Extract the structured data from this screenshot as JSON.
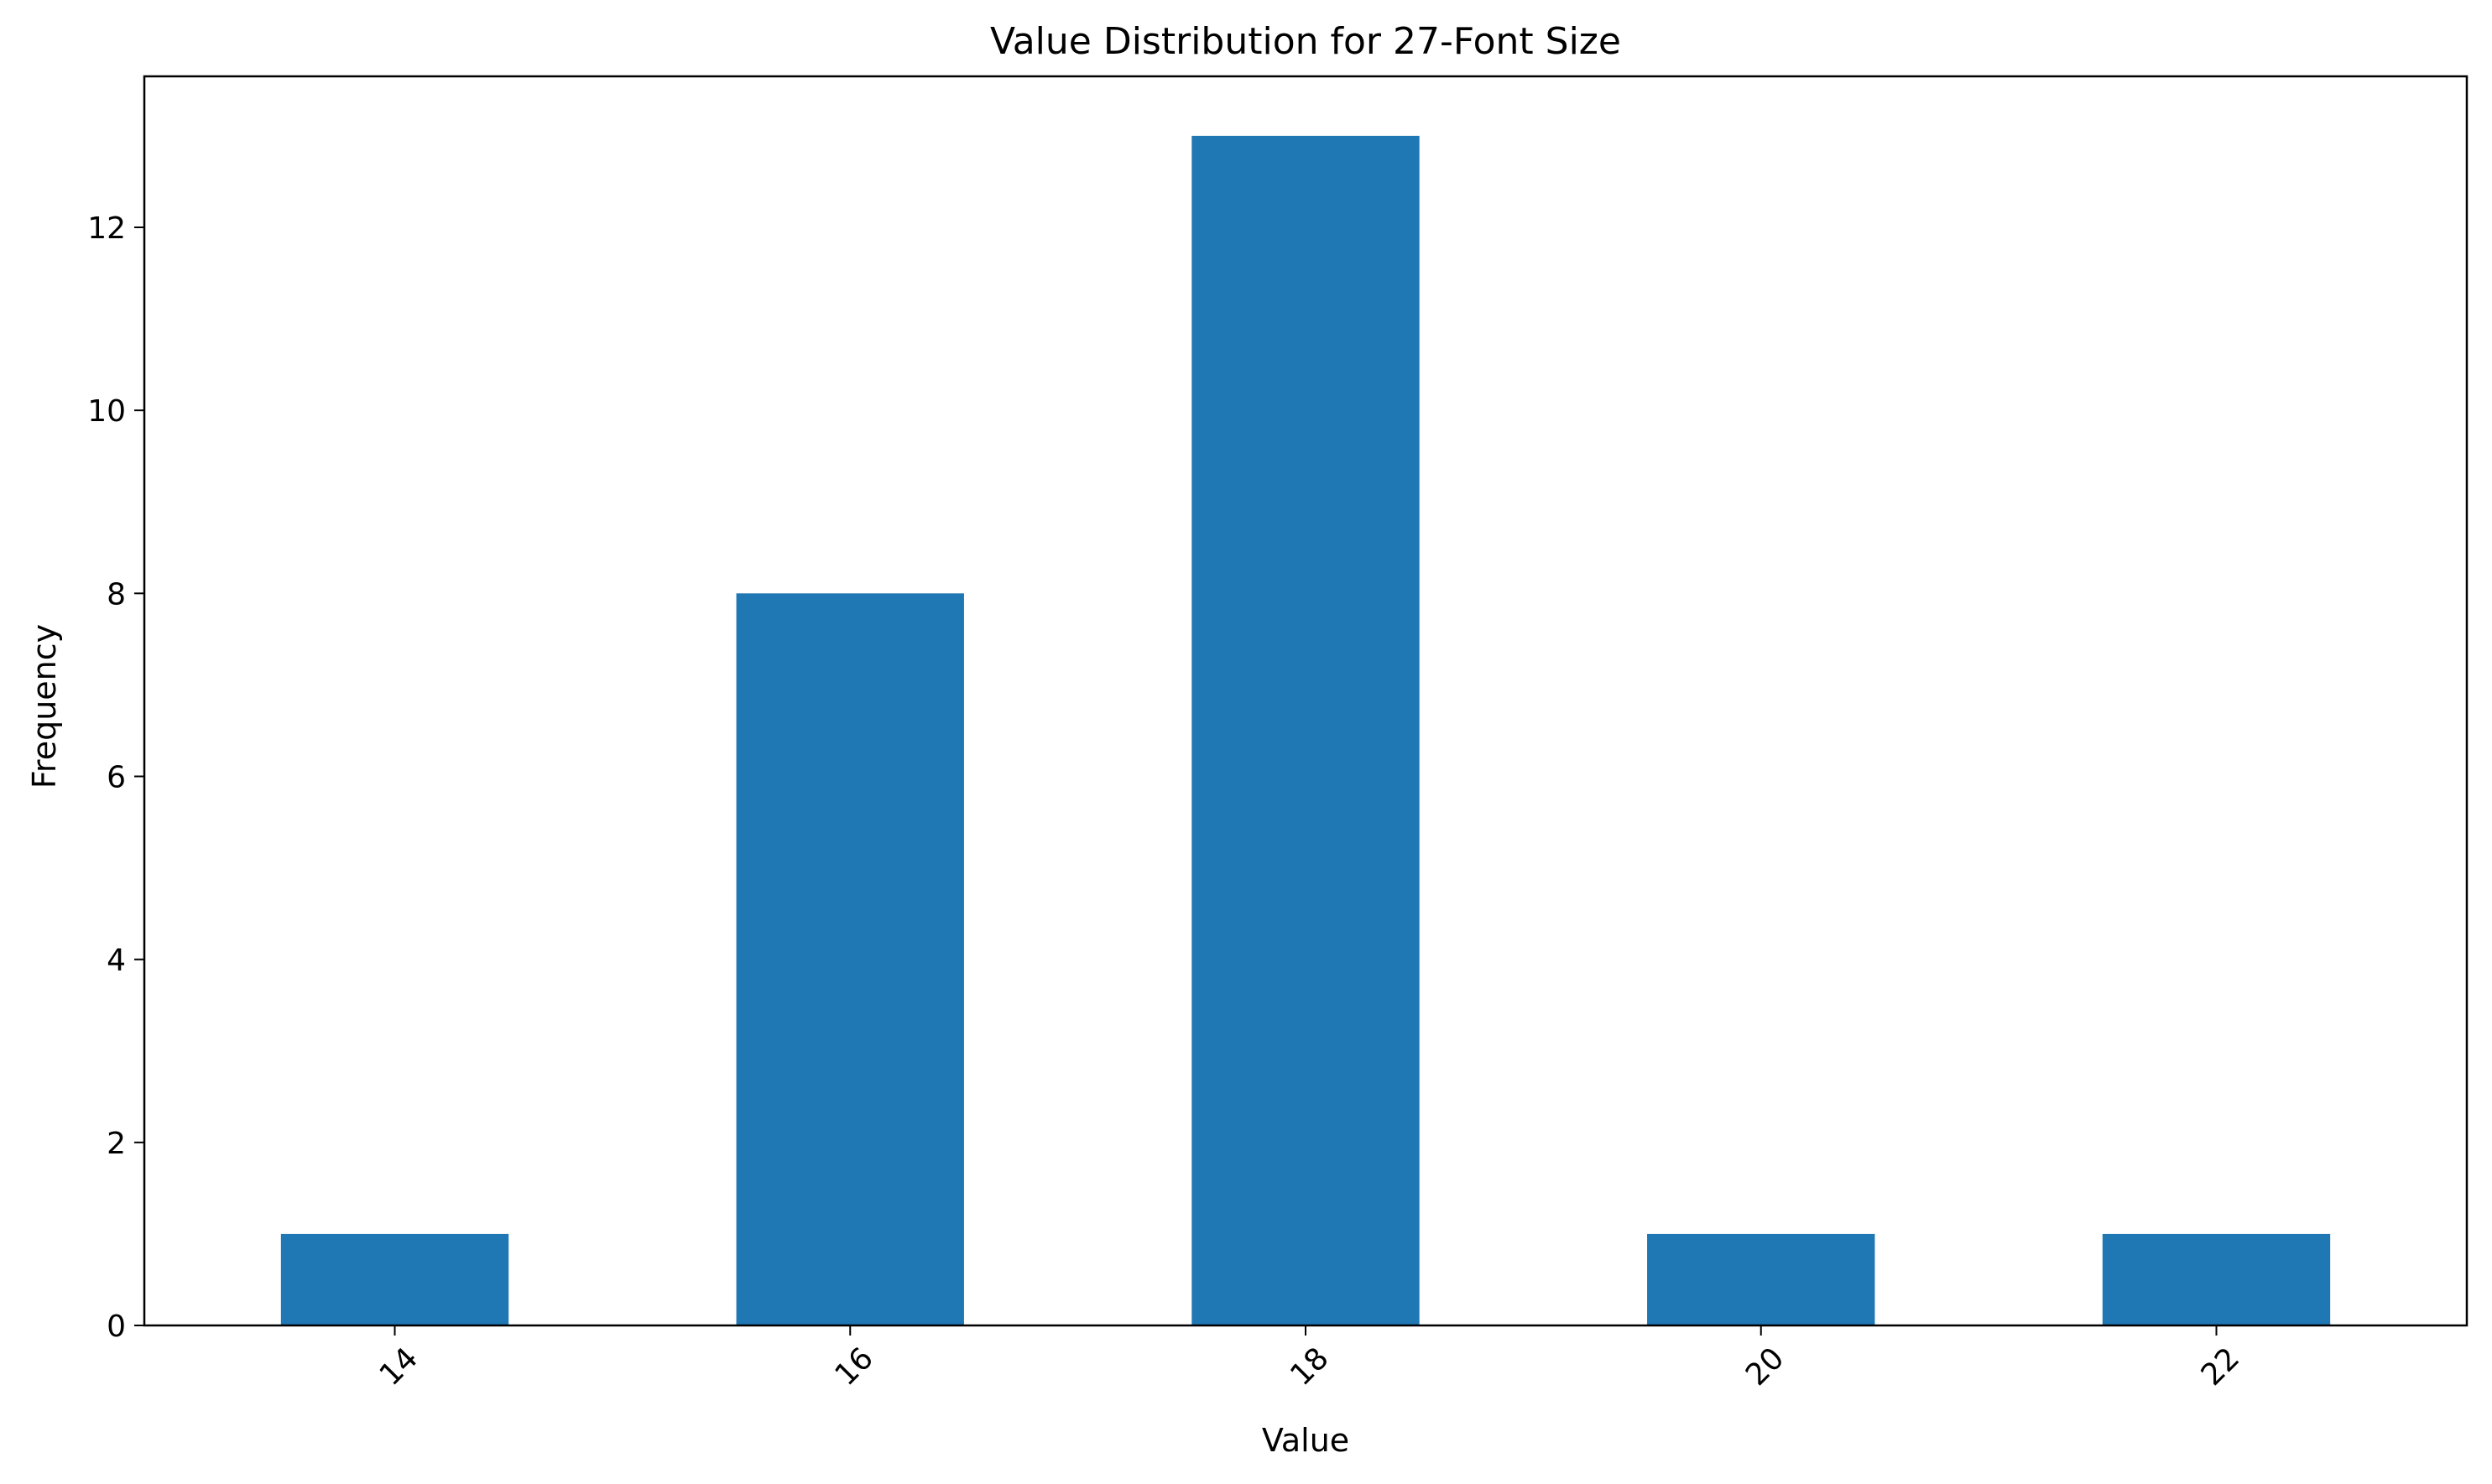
{
  "chart_data": {
    "type": "bar",
    "title": "Value Distribution for 27-Font Size",
    "xlabel": "Value",
    "ylabel": "Frequency",
    "categories": [
      "14",
      "16",
      "18",
      "20",
      "22"
    ],
    "values": [
      1,
      8,
      13,
      1,
      1
    ],
    "ylim": [
      0,
      13.65
    ],
    "yticks": [
      "0",
      "2",
      "4",
      "6",
      "8",
      "10",
      "12"
    ],
    "x_tick_rotation_deg": 45,
    "bar_color": "#1f77b4",
    "grid": false,
    "legend": "none"
  }
}
